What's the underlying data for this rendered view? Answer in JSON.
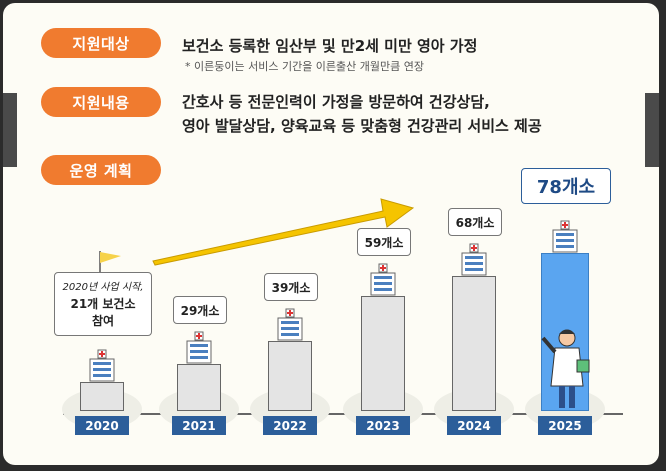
{
  "sections": [
    {
      "pill": "지원대상",
      "line1": "보건소 등록한 임산부 및 만2세 미만 영아 가정",
      "note": "* 이른둥이는 서비스 기간을 이른출산 개월만큼 연장"
    },
    {
      "pill": "지원내용",
      "line1": "간호사 등 전문인력이 가정을 방문하여 건강상담,",
      "line2": "영아 발달상담, 양육교육 등 맞춤형 건강관리 서비스 제공"
    },
    {
      "pill": "운영 계획"
    }
  ],
  "chart_data": {
    "type": "bar",
    "title": "운영 계획",
    "categories": [
      "2020",
      "2021",
      "2022",
      "2023",
      "2024",
      "2025"
    ],
    "values": [
      21,
      29,
      39,
      59,
      68,
      78
    ],
    "labels": [
      "2020년 사업 시작,",
      "29개소",
      "39개소",
      "59개소",
      "68개소",
      "78개소"
    ],
    "first_label_lines": [
      "2020년 사업 시작,",
      "21개 보건소",
      "참여"
    ],
    "highlight": "2025",
    "colors": {
      "bar": "#e4e4e4",
      "highlight": "#5aa5f0",
      "year_box": "#2c5e9a",
      "arrow": "#f5c400"
    }
  }
}
